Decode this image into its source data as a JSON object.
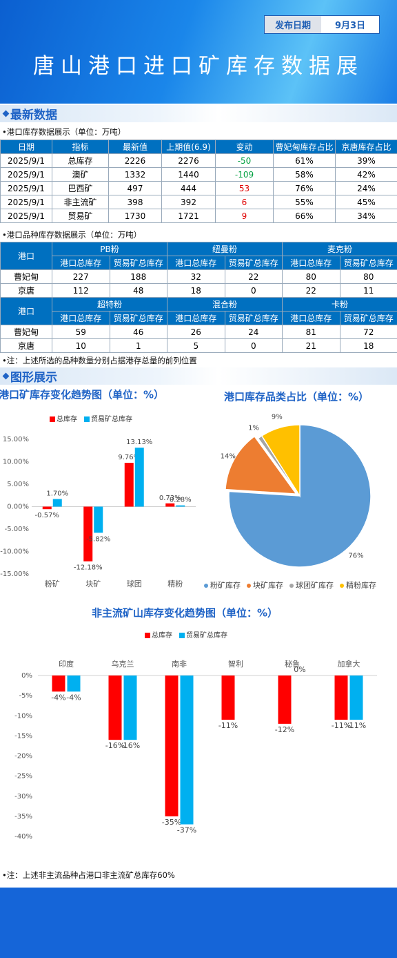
{
  "header": {
    "title": "唐山港口进口矿库存数据展",
    "date_label": "发布日期",
    "date": "9月3日"
  },
  "section1": {
    "heading": "最新数据",
    "table1": {
      "caption": "•港口库存数据展示（单位：万吨）",
      "columns": [
        "日期",
        "指标",
        "最新值",
        "上期值(6.9)",
        "变动",
        "曹妃甸库存占比",
        "京唐库存占比"
      ],
      "rows": [
        [
          "2025/9/1",
          "总库存",
          2226,
          2276,
          -50,
          "61%",
          "39%"
        ],
        [
          "2025/9/1",
          "澳矿",
          1332,
          1440,
          -109,
          "58%",
          "42%"
        ],
        [
          "2025/9/1",
          "巴西矿",
          497,
          444,
          53,
          "76%",
          "24%"
        ],
        [
          "2025/9/1",
          "非主流矿",
          398,
          392,
          6,
          "55%",
          "45%"
        ],
        [
          "2025/9/1",
          "贸易矿",
          1730,
          1721,
          9,
          "66%",
          "34%"
        ]
      ]
    },
    "table2": {
      "caption": "•港口品种库存数据展示（单位：万吨）",
      "blocks": [
        {
          "port_header": "港口",
          "groups": [
            {
              "name": "PB粉",
              "columns": [
                "港口总库存",
                "贸易矿总库存"
              ]
            },
            {
              "name": "纽曼粉",
              "columns": [
                "港口总库存",
                "贸易矿总库存"
              ]
            },
            {
              "name": "麦克粉",
              "columns": [
                "港口总库存",
                "贸易矿总库存"
              ]
            }
          ],
          "rows": [
            [
              "曹妃甸",
              227,
              188,
              32,
              22,
              80,
              80
            ],
            [
              "京唐",
              112,
              48,
              18,
              0,
              22,
              11
            ]
          ]
        },
        {
          "port_header": "港口",
          "groups": [
            {
              "name": "超特粉",
              "columns": [
                "港口总库存",
                "贸易矿总库存"
              ]
            },
            {
              "name": "混合粉",
              "columns": [
                "港口总库存",
                "贸易矿总库存"
              ]
            },
            {
              "name": "卡粉",
              "columns": [
                "港口总库存",
                "贸易矿总库存"
              ]
            }
          ],
          "rows": [
            [
              "曹妃甸",
              59,
              46,
              26,
              24,
              81,
              72
            ],
            [
              "京唐",
              10,
              1,
              5,
              0,
              21,
              18
            ]
          ]
        }
      ]
    },
    "note": "•注：上述所选的品种数量分别占据港存总量的前列位置"
  },
  "section2": {
    "heading": "图形展示",
    "note": "•注：上述非主流品种占港口非主流矿总库存60%"
  },
  "chart_data": [
    {
      "type": "bar",
      "title": "港口矿库存变化趋势图（单位：%）",
      "categories": [
        "粉矿",
        "块矿",
        "球团",
        "精粉"
      ],
      "series": [
        {
          "name": "总库存",
          "color": "#ff0000",
          "values": [
            -0.57,
            -12.18,
            9.76,
            0.73
          ],
          "value_labels": [
            "-0.57%",
            "-12.18%",
            "9.76%",
            "0.73%"
          ]
        },
        {
          "name": "贸易矿总库存",
          "color": "#00b0f0",
          "values": [
            1.7,
            -5.82,
            13.13,
            0.28
          ],
          "value_labels": [
            "1.70%",
            "-5.82%",
            "13.13%",
            "0.28%"
          ]
        }
      ],
      "ylim": [
        -15,
        15
      ],
      "yticks": [
        {
          "value": 15,
          "label": "15.00%"
        },
        {
          "value": 10,
          "label": "10.00%"
        },
        {
          "value": 5,
          "label": "5.00%"
        },
        {
          "value": 0,
          "label": "0.00%"
        },
        {
          "value": -5,
          "label": "-5.00%"
        },
        {
          "value": -10,
          "label": "-10.00%"
        },
        {
          "value": -15,
          "label": "-15.00%"
        }
      ],
      "grid": false,
      "category_axis": "bottom"
    },
    {
      "type": "pie",
      "title": "港口库存品类占比（单位：%）",
      "categories": [
        "粉矿库存",
        "块矿库存",
        "球团矿库存",
        "精粉库存"
      ],
      "values": [
        76,
        14,
        1,
        9
      ],
      "value_labels": [
        "76%",
        "14%",
        "1%",
        "9%"
      ],
      "colors": [
        "#5b9bd5",
        "#ed7d31",
        "#a5a5a5",
        "#ffc000"
      ]
    },
    {
      "type": "bar",
      "title": "非主流矿山库存变化趋势图（单位：%）",
      "categories": [
        "印度",
        "乌克兰",
        "南非",
        "智利",
        "秘鲁",
        "加拿大"
      ],
      "series": [
        {
          "name": "总库存",
          "color": "#ff0000",
          "values": [
            -4,
            -16,
            -35,
            -11,
            -12,
            -11
          ],
          "value_labels": [
            "-4%",
            "-16%",
            "-35%",
            "-11%",
            "-12%",
            "-11%"
          ]
        },
        {
          "name": "贸易矿总库存",
          "color": "#00b0f0",
          "values": [
            -4,
            -16,
            -37,
            null,
            0,
            -11
          ],
          "value_labels": [
            "-4%",
            "-16%",
            "-37%",
            null,
            "0%",
            "-11%"
          ]
        }
      ],
      "ylim": [
        -40,
        0
      ],
      "yticks": [
        {
          "value": 0,
          "label": "0%"
        },
        {
          "value": -5,
          "label": "-5%"
        },
        {
          "value": -10,
          "label": "-10%"
        },
        {
          "value": -15,
          "label": "-15%"
        },
        {
          "value": -20,
          "label": "-20%"
        },
        {
          "value": -25,
          "label": "-25%"
        },
        {
          "value": -30,
          "label": "-30%"
        },
        {
          "value": -35,
          "label": "-35%"
        },
        {
          "value": -40,
          "label": "-40%"
        }
      ],
      "grid": false,
      "category_axis": "top"
    }
  ]
}
